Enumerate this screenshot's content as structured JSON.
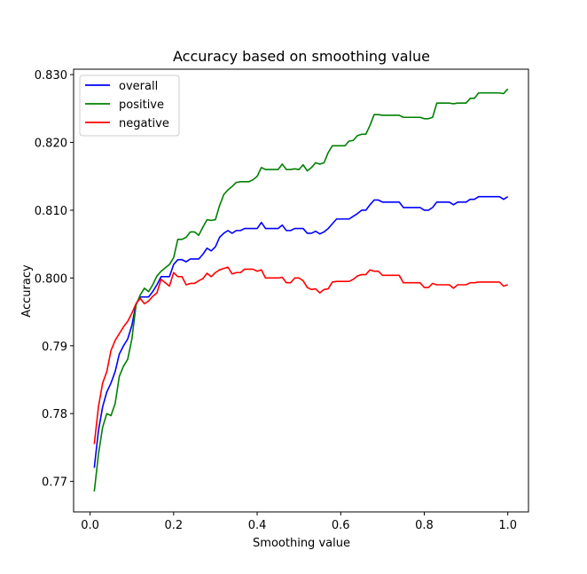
{
  "chart_data": {
    "type": "line",
    "title": "Accuracy based on smoothing value",
    "xlabel": "Smoothing value",
    "ylabel": "Accuracy",
    "xlim": [
      -0.0395,
      1.0495
    ],
    "ylim": [
      0.7655,
      0.8308
    ],
    "xticks": [
      0.0,
      0.2,
      0.4,
      0.6,
      0.8,
      1.0
    ],
    "xtick_labels": [
      "0.0",
      "0.2",
      "0.4",
      "0.6",
      "0.8",
      "1.0"
    ],
    "yticks": [
      0.77,
      0.78,
      0.79,
      0.8,
      0.81,
      0.82,
      0.83
    ],
    "ytick_labels": [
      "0.77",
      "0.78",
      "0.79",
      "0.800",
      "0.810",
      "0.820",
      "0.830"
    ],
    "grid": false,
    "legend_position": "top-left",
    "series": [
      {
        "name": "overall",
        "color": "#0000ff",
        "points": [
          [
            0.01,
            0.772
          ],
          [
            0.02,
            0.7775
          ],
          [
            0.03,
            0.781
          ],
          [
            0.04,
            0.7832
          ],
          [
            0.05,
            0.7845
          ],
          [
            0.06,
            0.7862
          ],
          [
            0.07,
            0.7888
          ],
          [
            0.08,
            0.79
          ],
          [
            0.09,
            0.791
          ],
          [
            0.1,
            0.793
          ],
          [
            0.11,
            0.7962
          ],
          [
            0.12,
            0.7972
          ],
          [
            0.13,
            0.7972
          ],
          [
            0.14,
            0.7972
          ],
          [
            0.15,
            0.798
          ],
          [
            0.16,
            0.799
          ],
          [
            0.17,
            0.8002
          ],
          [
            0.18,
            0.8002
          ],
          [
            0.19,
            0.8002
          ],
          [
            0.2,
            0.802
          ],
          [
            0.21,
            0.8027
          ],
          [
            0.22,
            0.8027
          ],
          [
            0.23,
            0.8024
          ],
          [
            0.24,
            0.8028
          ],
          [
            0.25,
            0.8028
          ],
          [
            0.26,
            0.8028
          ],
          [
            0.27,
            0.8035
          ],
          [
            0.28,
            0.8044
          ],
          [
            0.29,
            0.804
          ],
          [
            0.3,
            0.8046
          ],
          [
            0.31,
            0.806
          ],
          [
            0.32,
            0.8066
          ],
          [
            0.33,
            0.807
          ],
          [
            0.34,
            0.8066
          ],
          [
            0.35,
            0.807
          ],
          [
            0.36,
            0.807
          ],
          [
            0.37,
            0.8073
          ],
          [
            0.38,
            0.8073
          ],
          [
            0.39,
            0.8073
          ],
          [
            0.4,
            0.8073
          ],
          [
            0.41,
            0.8082
          ],
          [
            0.42,
            0.8073
          ],
          [
            0.43,
            0.8073
          ],
          [
            0.44,
            0.8073
          ],
          [
            0.45,
            0.8073
          ],
          [
            0.46,
            0.8078
          ],
          [
            0.47,
            0.807
          ],
          [
            0.48,
            0.807
          ],
          [
            0.49,
            0.8073
          ],
          [
            0.5,
            0.8073
          ],
          [
            0.51,
            0.8073
          ],
          [
            0.52,
            0.8066
          ],
          [
            0.53,
            0.8066
          ],
          [
            0.54,
            0.8069
          ],
          [
            0.55,
            0.8065
          ],
          [
            0.56,
            0.8068
          ],
          [
            0.57,
            0.8073
          ],
          [
            0.58,
            0.808
          ],
          [
            0.59,
            0.8087
          ],
          [
            0.6,
            0.8087
          ],
          [
            0.61,
            0.8087
          ],
          [
            0.62,
            0.8087
          ],
          [
            0.63,
            0.8091
          ],
          [
            0.64,
            0.8095
          ],
          [
            0.65,
            0.81
          ],
          [
            0.66,
            0.81
          ],
          [
            0.67,
            0.8108
          ],
          [
            0.68,
            0.8115
          ],
          [
            0.69,
            0.8115
          ],
          [
            0.7,
            0.8112
          ],
          [
            0.71,
            0.8112
          ],
          [
            0.72,
            0.8112
          ],
          [
            0.73,
            0.8112
          ],
          [
            0.74,
            0.8112
          ],
          [
            0.75,
            0.8104
          ],
          [
            0.76,
            0.8104
          ],
          [
            0.77,
            0.8104
          ],
          [
            0.78,
            0.8104
          ],
          [
            0.79,
            0.8104
          ],
          [
            0.8,
            0.81
          ],
          [
            0.81,
            0.81
          ],
          [
            0.82,
            0.8104
          ],
          [
            0.83,
            0.8112
          ],
          [
            0.84,
            0.8112
          ],
          [
            0.85,
            0.8112
          ],
          [
            0.86,
            0.8112
          ],
          [
            0.87,
            0.8108
          ],
          [
            0.88,
            0.8112
          ],
          [
            0.89,
            0.8112
          ],
          [
            0.9,
            0.8112
          ],
          [
            0.91,
            0.8116
          ],
          [
            0.92,
            0.8116
          ],
          [
            0.93,
            0.812
          ],
          [
            0.94,
            0.812
          ],
          [
            0.95,
            0.812
          ],
          [
            0.96,
            0.812
          ],
          [
            0.97,
            0.812
          ],
          [
            0.98,
            0.812
          ],
          [
            0.99,
            0.8116
          ],
          [
            1.0,
            0.812
          ]
        ]
      },
      {
        "name": "positive",
        "color": "#008000",
        "points": [
          [
            0.01,
            0.7685
          ],
          [
            0.02,
            0.774
          ],
          [
            0.03,
            0.778
          ],
          [
            0.04,
            0.78
          ],
          [
            0.05,
            0.7797
          ],
          [
            0.06,
            0.7815
          ],
          [
            0.07,
            0.7855
          ],
          [
            0.08,
            0.787
          ],
          [
            0.09,
            0.788
          ],
          [
            0.1,
            0.791
          ],
          [
            0.11,
            0.796
          ],
          [
            0.12,
            0.7975
          ],
          [
            0.13,
            0.7985
          ],
          [
            0.14,
            0.798
          ],
          [
            0.15,
            0.799
          ],
          [
            0.16,
            0.8003
          ],
          [
            0.17,
            0.801
          ],
          [
            0.18,
            0.8015
          ],
          [
            0.19,
            0.802
          ],
          [
            0.2,
            0.803
          ],
          [
            0.21,
            0.8057
          ],
          [
            0.22,
            0.8057
          ],
          [
            0.23,
            0.806
          ],
          [
            0.24,
            0.8068
          ],
          [
            0.25,
            0.8068
          ],
          [
            0.26,
            0.8063
          ],
          [
            0.27,
            0.8075
          ],
          [
            0.28,
            0.8086
          ],
          [
            0.29,
            0.8085
          ],
          [
            0.3,
            0.8086
          ],
          [
            0.31,
            0.8107
          ],
          [
            0.32,
            0.8123
          ],
          [
            0.33,
            0.813
          ],
          [
            0.34,
            0.8135
          ],
          [
            0.35,
            0.8141
          ],
          [
            0.36,
            0.8142
          ],
          [
            0.37,
            0.8142
          ],
          [
            0.38,
            0.8142
          ],
          [
            0.39,
            0.8145
          ],
          [
            0.4,
            0.815
          ],
          [
            0.41,
            0.8163
          ],
          [
            0.42,
            0.816
          ],
          [
            0.43,
            0.816
          ],
          [
            0.44,
            0.816
          ],
          [
            0.45,
            0.816
          ],
          [
            0.46,
            0.8168
          ],
          [
            0.47,
            0.816
          ],
          [
            0.48,
            0.816
          ],
          [
            0.49,
            0.8161
          ],
          [
            0.5,
            0.816
          ],
          [
            0.51,
            0.8167
          ],
          [
            0.52,
            0.8158
          ],
          [
            0.53,
            0.8163
          ],
          [
            0.54,
            0.817
          ],
          [
            0.55,
            0.8168
          ],
          [
            0.56,
            0.817
          ],
          [
            0.57,
            0.8185
          ],
          [
            0.58,
            0.8195
          ],
          [
            0.59,
            0.8195
          ],
          [
            0.6,
            0.8195
          ],
          [
            0.61,
            0.8195
          ],
          [
            0.62,
            0.8202
          ],
          [
            0.63,
            0.8203
          ],
          [
            0.64,
            0.821
          ],
          [
            0.65,
            0.8212
          ],
          [
            0.66,
            0.8212
          ],
          [
            0.67,
            0.8225
          ],
          [
            0.68,
            0.8241
          ],
          [
            0.69,
            0.8241
          ],
          [
            0.7,
            0.824
          ],
          [
            0.71,
            0.824
          ],
          [
            0.72,
            0.824
          ],
          [
            0.73,
            0.824
          ],
          [
            0.74,
            0.824
          ],
          [
            0.75,
            0.8237
          ],
          [
            0.76,
            0.8237
          ],
          [
            0.77,
            0.8237
          ],
          [
            0.78,
            0.8237
          ],
          [
            0.79,
            0.8237
          ],
          [
            0.8,
            0.8235
          ],
          [
            0.81,
            0.8235
          ],
          [
            0.82,
            0.8237
          ],
          [
            0.83,
            0.8258
          ],
          [
            0.84,
            0.8258
          ],
          [
            0.85,
            0.8258
          ],
          [
            0.86,
            0.8258
          ],
          [
            0.87,
            0.8257
          ],
          [
            0.88,
            0.8258
          ],
          [
            0.89,
            0.8258
          ],
          [
            0.9,
            0.8258
          ],
          [
            0.91,
            0.8265
          ],
          [
            0.92,
            0.8265
          ],
          [
            0.93,
            0.8273
          ],
          [
            0.94,
            0.8273
          ],
          [
            0.95,
            0.8273
          ],
          [
            0.96,
            0.8273
          ],
          [
            0.97,
            0.8273
          ],
          [
            0.98,
            0.8273
          ],
          [
            0.99,
            0.8272
          ],
          [
            1.0,
            0.8279
          ]
        ]
      },
      {
        "name": "negative",
        "color": "#ff0000",
        "points": [
          [
            0.01,
            0.7755
          ],
          [
            0.02,
            0.781
          ],
          [
            0.03,
            0.7845
          ],
          [
            0.04,
            0.7862
          ],
          [
            0.05,
            0.7893
          ],
          [
            0.06,
            0.7908
          ],
          [
            0.07,
            0.7918
          ],
          [
            0.08,
            0.7928
          ],
          [
            0.09,
            0.7936
          ],
          [
            0.1,
            0.7948
          ],
          [
            0.11,
            0.7962
          ],
          [
            0.12,
            0.797
          ],
          [
            0.13,
            0.7962
          ],
          [
            0.14,
            0.7966
          ],
          [
            0.15,
            0.7973
          ],
          [
            0.16,
            0.7978
          ],
          [
            0.17,
            0.7998
          ],
          [
            0.18,
            0.7993
          ],
          [
            0.19,
            0.7988
          ],
          [
            0.2,
            0.8008
          ],
          [
            0.21,
            0.8002
          ],
          [
            0.22,
            0.8002
          ],
          [
            0.23,
            0.799
          ],
          [
            0.24,
            0.7992
          ],
          [
            0.25,
            0.7992
          ],
          [
            0.26,
            0.7996
          ],
          [
            0.27,
            0.7999
          ],
          [
            0.28,
            0.8007
          ],
          [
            0.29,
            0.8002
          ],
          [
            0.3,
            0.8008
          ],
          [
            0.31,
            0.8012
          ],
          [
            0.32,
            0.8014
          ],
          [
            0.33,
            0.8016
          ],
          [
            0.34,
            0.8006
          ],
          [
            0.35,
            0.8008
          ],
          [
            0.36,
            0.8008
          ],
          [
            0.37,
            0.8013
          ],
          [
            0.38,
            0.8013
          ],
          [
            0.39,
            0.8013
          ],
          [
            0.4,
            0.801
          ],
          [
            0.41,
            0.8012
          ],
          [
            0.42,
            0.8
          ],
          [
            0.43,
            0.8
          ],
          [
            0.44,
            0.8
          ],
          [
            0.45,
            0.8
          ],
          [
            0.46,
            0.8001
          ],
          [
            0.47,
            0.7993
          ],
          [
            0.48,
            0.7993
          ],
          [
            0.49,
            0.8
          ],
          [
            0.5,
            0.8
          ],
          [
            0.51,
            0.7996
          ],
          [
            0.52,
            0.7986
          ],
          [
            0.53,
            0.7983
          ],
          [
            0.54,
            0.7984
          ],
          [
            0.55,
            0.7978
          ],
          [
            0.56,
            0.7983
          ],
          [
            0.57,
            0.7984
          ],
          [
            0.58,
            0.7994
          ],
          [
            0.59,
            0.7995
          ],
          [
            0.6,
            0.7995
          ],
          [
            0.61,
            0.7995
          ],
          [
            0.62,
            0.7995
          ],
          [
            0.63,
            0.7998
          ],
          [
            0.64,
            0.8003
          ],
          [
            0.65,
            0.8005
          ],
          [
            0.66,
            0.8005
          ],
          [
            0.67,
            0.8012
          ],
          [
            0.68,
            0.801
          ],
          [
            0.69,
            0.801
          ],
          [
            0.7,
            0.8004
          ],
          [
            0.71,
            0.8004
          ],
          [
            0.72,
            0.8004
          ],
          [
            0.73,
            0.8004
          ],
          [
            0.74,
            0.8004
          ],
          [
            0.75,
            0.7993
          ],
          [
            0.76,
            0.7993
          ],
          [
            0.77,
            0.7993
          ],
          [
            0.78,
            0.7993
          ],
          [
            0.79,
            0.7993
          ],
          [
            0.8,
            0.7986
          ],
          [
            0.81,
            0.7986
          ],
          [
            0.82,
            0.7992
          ],
          [
            0.83,
            0.799
          ],
          [
            0.84,
            0.799
          ],
          [
            0.85,
            0.799
          ],
          [
            0.86,
            0.799
          ],
          [
            0.87,
            0.7985
          ],
          [
            0.88,
            0.799
          ],
          [
            0.89,
            0.799
          ],
          [
            0.9,
            0.799
          ],
          [
            0.91,
            0.7993
          ],
          [
            0.92,
            0.7993
          ],
          [
            0.93,
            0.7994
          ],
          [
            0.94,
            0.7994
          ],
          [
            0.95,
            0.7994
          ],
          [
            0.96,
            0.7994
          ],
          [
            0.97,
            0.7994
          ],
          [
            0.98,
            0.7994
          ],
          [
            0.99,
            0.7988
          ],
          [
            1.0,
            0.799
          ]
        ]
      }
    ]
  }
}
